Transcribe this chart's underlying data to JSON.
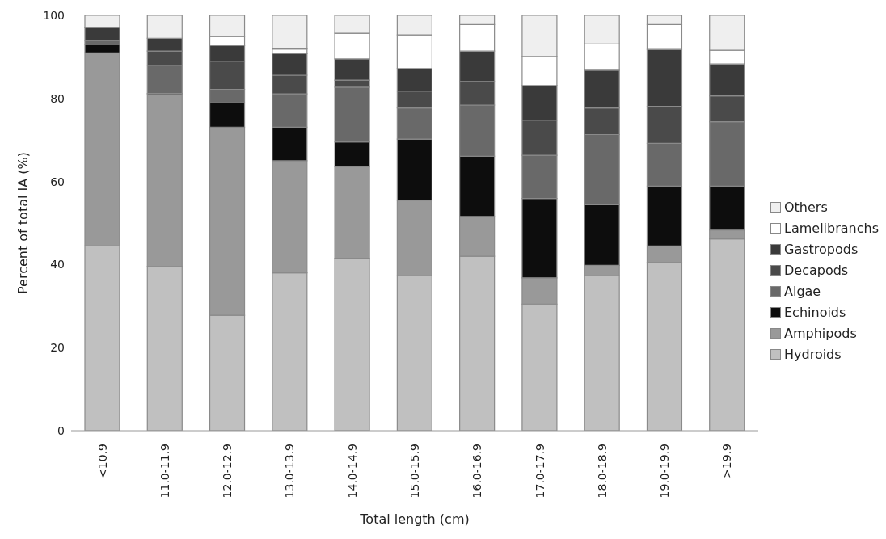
{
  "chart_data": {
    "type": "bar",
    "stacked": true,
    "xlabel": "Total length (cm)",
    "ylabel": "Percent of total IA (%)",
    "categories": [
      "<10.9",
      "11.0-11.9",
      "12.0-12.9",
      "13.0-13.9",
      "14.0-14.9",
      "15.0-15.9",
      "16.0-16.9",
      "17.0-17.9",
      "18.0-18.9",
      "19.0-19.9",
      ">19.9"
    ],
    "ylim": [
      0,
      100
    ],
    "yticks": [
      0,
      20,
      40,
      60,
      80,
      100
    ],
    "grid": false,
    "legend": "right",
    "series": [
      {
        "name": "Hydroids",
        "color": "#c0c0c0",
        "values": [
          44.5,
          39.5,
          27.8,
          38.0,
          41.5,
          37.3,
          42.0,
          30.5,
          37.3,
          40.5,
          46.2
        ]
      },
      {
        "name": "Amphipods",
        "color": "#999999",
        "values": [
          46.5,
          41.4,
          45.3,
          27.0,
          22.1,
          18.2,
          9.6,
          6.3,
          2.5,
          4.0,
          2.1
        ]
      },
      {
        "name": "Echinoids",
        "color": "#0d0d0d",
        "values": [
          2.0,
          0.3,
          5.8,
          8.1,
          5.9,
          14.7,
          14.5,
          19.1,
          14.6,
          14.4,
          10.6
        ]
      },
      {
        "name": "Algae",
        "color": "#696969",
        "values": [
          1.0,
          6.8,
          3.3,
          8.0,
          13.2,
          7.5,
          12.3,
          10.4,
          16.9,
          10.3,
          15.5
        ]
      },
      {
        "name": "Decapods",
        "color": "#4a4a4a",
        "values": [
          0,
          3.4,
          6.8,
          4.5,
          1.7,
          4.1,
          5.7,
          8.5,
          6.4,
          8.9,
          6.2
        ]
      },
      {
        "name": "Gastropods",
        "color": "#3a3a3a",
        "values": [
          3.0,
          3.1,
          3.7,
          5.2,
          5.1,
          5.4,
          7.3,
          8.3,
          9.1,
          13.7,
          7.7
        ]
      },
      {
        "name": "Lamelibranchs",
        "color": "#ffffff",
        "values": [
          0,
          0,
          2.2,
          1.1,
          6.2,
          8.1,
          6.4,
          7.0,
          6.3,
          6.0,
          3.3
        ]
      },
      {
        "name": "Others",
        "color": "#efefef",
        "values": [
          3.0,
          5.5,
          5.1,
          8.1,
          4.3,
          4.7,
          2.2,
          9.9,
          6.9,
          2.2,
          8.4
        ]
      }
    ]
  }
}
